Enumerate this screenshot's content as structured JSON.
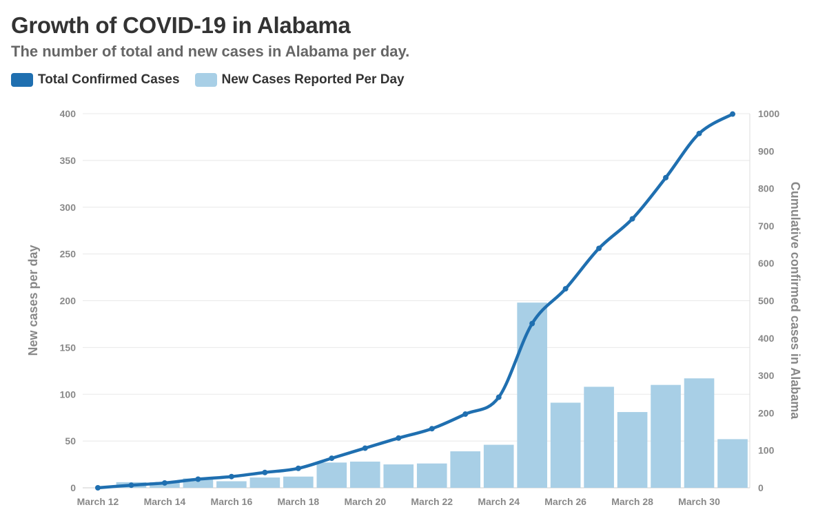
{
  "chart_data": {
    "type": "bar",
    "title": "Growth of COVID-19 in Alabama",
    "subtitle": "The number of total and new cases in Alabama per day.",
    "x": [
      "March 12",
      "March 13",
      "March 14",
      "March 15",
      "March 16",
      "March 17",
      "March 18",
      "March 19",
      "March 20",
      "March 21",
      "March 22",
      "March 23",
      "March 24",
      "March 25",
      "March 26",
      "March 27",
      "March 28",
      "March 29",
      "March 30",
      "March 31"
    ],
    "x_tick_labels": [
      "March 12",
      "March 14",
      "March 16",
      "March 18",
      "March 20",
      "March 22",
      "March 24",
      "March 26",
      "March 28",
      "March 30"
    ],
    "series": [
      {
        "name": "Total Confirmed Cases",
        "type": "line",
        "axis": "right",
        "color": "#1f6fb0",
        "values": [
          0,
          7,
          13,
          23,
          30,
          41,
          52,
          79,
          106,
          133,
          158,
          197,
          242,
          439,
          532,
          640,
          719,
          829,
          947,
          999
        ]
      },
      {
        "name": "New Cases Reported Per Day",
        "type": "bar",
        "axis": "left",
        "color": "#a8cfe6",
        "values": [
          0,
          6,
          6,
          10,
          7,
          11,
          12,
          27,
          28,
          25,
          26,
          39,
          46,
          198,
          91,
          108,
          81,
          110,
          117,
          52
        ]
      }
    ],
    "ylabel": "New cases per day",
    "ylim": [
      0,
      400
    ],
    "yticks": [
      0,
      50,
      100,
      150,
      200,
      250,
      300,
      350,
      400
    ],
    "y2label": "Cumulative confirmed cases in Alabama",
    "y2lim": [
      0,
      1000
    ],
    "y2ticks": [
      0,
      100,
      200,
      300,
      400,
      500,
      600,
      700,
      800,
      900,
      1000
    ],
    "grid": true,
    "legend_position": "top-left"
  }
}
